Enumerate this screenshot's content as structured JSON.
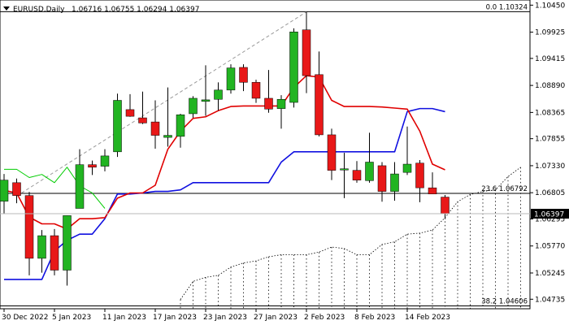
{
  "header": {
    "symbol": "EURUSD,Daily",
    "ohlc": "1.06716 1.06755 1.06294 1.06397"
  },
  "colors": {
    "bull": "#22b422",
    "bear": "#e81818",
    "blue_line": "#1010e0",
    "red_line": "#e00000",
    "green_line": "#00cc00",
    "trendline": "#9a9a9a",
    "cloud": "#000000"
  },
  "chart_data": {
    "type": "candlestick",
    "title": "EURUSD,Daily",
    "ylim": [
      1.0455,
      1.1055
    ],
    "y_ticks": [
      "1.10450",
      "1.09925",
      "1.09415",
      "1.08890",
      "1.08365",
      "1.07855",
      "1.07330",
      "1.06805",
      "1.06295",
      "1.05770",
      "1.05245",
      "1.04735"
    ],
    "current_price": "1.06397",
    "x_labels": [
      {
        "index": 0,
        "label": "30 Dec 2022"
      },
      {
        "index": 4,
        "label": "5 Jan 2023"
      },
      {
        "index": 8,
        "label": "11 Jan 2023"
      },
      {
        "index": 12,
        "label": "17 Jan 2023"
      },
      {
        "index": 16,
        "label": "23 Jan 2023"
      },
      {
        "index": 20,
        "label": "27 Jan 2023"
      },
      {
        "index": 24,
        "label": "2 Feb 2023"
      },
      {
        "index": 28,
        "label": "8 Feb 2023"
      },
      {
        "index": 32,
        "label": "14 Feb 2023"
      }
    ],
    "candles": [
      {
        "o": 1.0664,
        "h": 1.0717,
        "l": 1.064,
        "c": 1.0705
      },
      {
        "o": 1.07,
        "h": 1.0708,
        "l": 1.066,
        "c": 1.0675
      },
      {
        "o": 1.0675,
        "h": 1.0682,
        "l": 1.052,
        "c": 1.0553
      },
      {
        "o": 1.0553,
        "h": 1.0608,
        "l": 1.0525,
        "c": 1.0597
      },
      {
        "o": 1.0597,
        "h": 1.061,
        "l": 1.052,
        "c": 1.053
      },
      {
        "o": 1.053,
        "h": 1.0636,
        "l": 1.05,
        "c": 1.0636
      },
      {
        "o": 1.065,
        "h": 1.0765,
        "l": 1.065,
        "c": 1.0735
      },
      {
        "o": 1.0735,
        "h": 1.0743,
        "l": 1.0715,
        "c": 1.073
      },
      {
        "o": 1.0732,
        "h": 1.0765,
        "l": 1.0722,
        "c": 1.0752
      },
      {
        "o": 1.076,
        "h": 1.0873,
        "l": 1.075,
        "c": 1.086
      },
      {
        "o": 1.0842,
        "h": 1.0872,
        "l": 1.0828,
        "c": 1.0829
      },
      {
        "o": 1.0826,
        "h": 1.0877,
        "l": 1.0814,
        "c": 1.0816
      },
      {
        "o": 1.0818,
        "h": 1.086,
        "l": 1.0766,
        "c": 1.0792
      },
      {
        "o": 1.0788,
        "h": 1.0885,
        "l": 1.077,
        "c": 1.0792
      },
      {
        "o": 1.079,
        "h": 1.0834,
        "l": 1.0768,
        "c": 1.0832
      },
      {
        "o": 1.0834,
        "h": 1.0868,
        "l": 1.0826,
        "c": 1.0864
      },
      {
        "o": 1.0858,
        "h": 1.0928,
        "l": 1.083,
        "c": 1.0861
      },
      {
        "o": 1.0862,
        "h": 1.0895,
        "l": 1.084,
        "c": 1.088
      },
      {
        "o": 1.088,
        "h": 1.093,
        "l": 1.0873,
        "c": 1.0923
      },
      {
        "o": 1.0924,
        "h": 1.093,
        "l": 1.0878,
        "c": 1.0895
      },
      {
        "o": 1.0895,
        "h": 1.09,
        "l": 1.0855,
        "c": 1.0864
      },
      {
        "o": 1.0864,
        "h": 1.0919,
        "l": 1.0836,
        "c": 1.0843
      },
      {
        "o": 1.0844,
        "h": 1.087,
        "l": 1.0805,
        "c": 1.0862
      },
      {
        "o": 1.0856,
        "h": 1.1,
        "l": 1.0846,
        "c": 1.0993
      },
      {
        "o": 1.0997,
        "h": 1.1032,
        "l": 1.0874,
        "c": 1.0908
      },
      {
        "o": 1.091,
        "h": 1.0955,
        "l": 1.079,
        "c": 1.0793
      },
      {
        "o": 1.0793,
        "h": 1.0805,
        "l": 1.0705,
        "c": 1.0724
      },
      {
        "o": 1.0727,
        "h": 1.0758,
        "l": 1.067,
        "c": 1.0727
      },
      {
        "o": 1.0724,
        "h": 1.0742,
        "l": 1.07,
        "c": 1.0705
      },
      {
        "o": 1.0704,
        "h": 1.0797,
        "l": 1.07,
        "c": 1.074
      },
      {
        "o": 1.0733,
        "h": 1.074,
        "l": 1.0663,
        "c": 1.0683
      },
      {
        "o": 1.0683,
        "h": 1.074,
        "l": 1.0665,
        "c": 1.0717
      },
      {
        "o": 1.072,
        "h": 1.0809,
        "l": 1.0715,
        "c": 1.0736
      },
      {
        "o": 1.0738,
        "h": 1.0744,
        "l": 1.0662,
        "c": 1.069
      },
      {
        "o": 1.069,
        "h": 1.072,
        "l": 1.0678,
        "c": 1.0678
      },
      {
        "o": 1.0672,
        "h": 1.0676,
        "l": 1.0629,
        "c": 1.064
      }
    ],
    "red_line": [
      [
        0,
        1.0685
      ],
      [
        1,
        1.068
      ],
      [
        2,
        1.0633
      ],
      [
        3,
        1.062
      ],
      [
        4,
        1.062
      ],
      [
        5,
        1.061
      ],
      [
        6,
        1.063
      ],
      [
        7,
        1.063
      ],
      [
        8,
        1.0632
      ],
      [
        9,
        1.067
      ],
      [
        10,
        1.068
      ],
      [
        11,
        1.068
      ],
      [
        12,
        1.0695
      ],
      [
        13,
        1.0765
      ],
      [
        14,
        1.08
      ],
      [
        15,
        1.0825
      ],
      [
        16,
        1.0828
      ],
      [
        17,
        1.084
      ],
      [
        18,
        1.0848
      ],
      [
        19,
        1.0849
      ],
      [
        20,
        1.0849
      ],
      [
        21,
        1.0849
      ],
      [
        22,
        1.0849
      ],
      [
        23,
        1.0885
      ],
      [
        24,
        1.0908
      ],
      [
        25,
        1.0905
      ],
      [
        26,
        1.086
      ],
      [
        27,
        1.0848
      ],
      [
        28,
        1.0848
      ],
      [
        29,
        1.0848
      ],
      [
        30,
        1.0847
      ],
      [
        31,
        1.0845
      ],
      [
        32,
        1.0843
      ],
      [
        33,
        1.08
      ],
      [
        34,
        1.0736
      ],
      [
        35,
        1.0725
      ]
    ],
    "blue_line": [
      [
        0,
        1.0512
      ],
      [
        1,
        1.0512
      ],
      [
        2,
        1.0512
      ],
      [
        3,
        1.0512
      ],
      [
        4,
        1.0567
      ],
      [
        5,
        1.0588
      ],
      [
        6,
        1.06
      ],
      [
        7,
        1.06
      ],
      [
        8,
        1.063
      ],
      [
        9,
        1.0678
      ],
      [
        10,
        1.0678
      ],
      [
        11,
        1.068
      ],
      [
        12,
        1.0683
      ],
      [
        13,
        1.0683
      ],
      [
        14,
        1.0686
      ],
      [
        15,
        1.07
      ],
      [
        16,
        1.07
      ],
      [
        17,
        1.07
      ],
      [
        18,
        1.07
      ],
      [
        19,
        1.07
      ],
      [
        20,
        1.07
      ],
      [
        21,
        1.07
      ],
      [
        22,
        1.074
      ],
      [
        23,
        1.076
      ],
      [
        24,
        1.076
      ],
      [
        25,
        1.076
      ],
      [
        26,
        1.076
      ],
      [
        27,
        1.076
      ],
      [
        28,
        1.076
      ],
      [
        29,
        1.076
      ],
      [
        30,
        1.076
      ],
      [
        31,
        1.076
      ],
      [
        32,
        1.0838
      ],
      [
        33,
        1.0844
      ],
      [
        34,
        1.0844
      ],
      [
        35,
        1.0838
      ]
    ],
    "green_line": [
      [
        0,
        1.0726
      ],
      [
        1,
        1.0726
      ],
      [
        2,
        1.071
      ],
      [
        3,
        1.0716
      ],
      [
        4,
        1.07
      ],
      [
        5,
        1.073
      ],
      [
        6,
        1.0694
      ],
      [
        7,
        1.068
      ],
      [
        8,
        1.065
      ]
    ],
    "cloud": [
      [
        14,
        1.0473
      ],
      [
        15,
        1.0508
      ],
      [
        16,
        1.0516
      ],
      [
        17,
        1.052
      ],
      [
        18,
        1.0536
      ],
      [
        19,
        1.0544
      ],
      [
        20,
        1.0548
      ],
      [
        21,
        1.0556
      ],
      [
        22,
        1.056
      ],
      [
        23,
        1.056
      ],
      [
        24,
        1.056
      ],
      [
        25,
        1.0565
      ],
      [
        26,
        1.0575
      ],
      [
        27,
        1.0572
      ],
      [
        28,
        1.056
      ],
      [
        29,
        1.056
      ],
      [
        30,
        1.058
      ],
      [
        31,
        1.0585
      ],
      [
        32,
        1.06
      ],
      [
        33,
        1.0602
      ],
      [
        34,
        1.0608
      ],
      [
        35,
        1.0632
      ],
      [
        36,
        1.0663
      ],
      [
        37,
        1.0677
      ],
      [
        38,
        1.0683
      ],
      [
        39,
        1.0686
      ],
      [
        40,
        1.0712
      ],
      [
        41,
        1.073
      ]
    ],
    "trendline": [
      [
        1,
        1.0674
      ],
      [
        24,
        1.1032
      ]
    ],
    "fib_levels": [
      {
        "label": "0.0 1.10324",
        "value": 1.10324
      },
      {
        "label": "23.6 1.06792",
        "value": 1.06792
      },
      {
        "label": "38.2 1.04606",
        "value": 1.04606
      }
    ]
  }
}
